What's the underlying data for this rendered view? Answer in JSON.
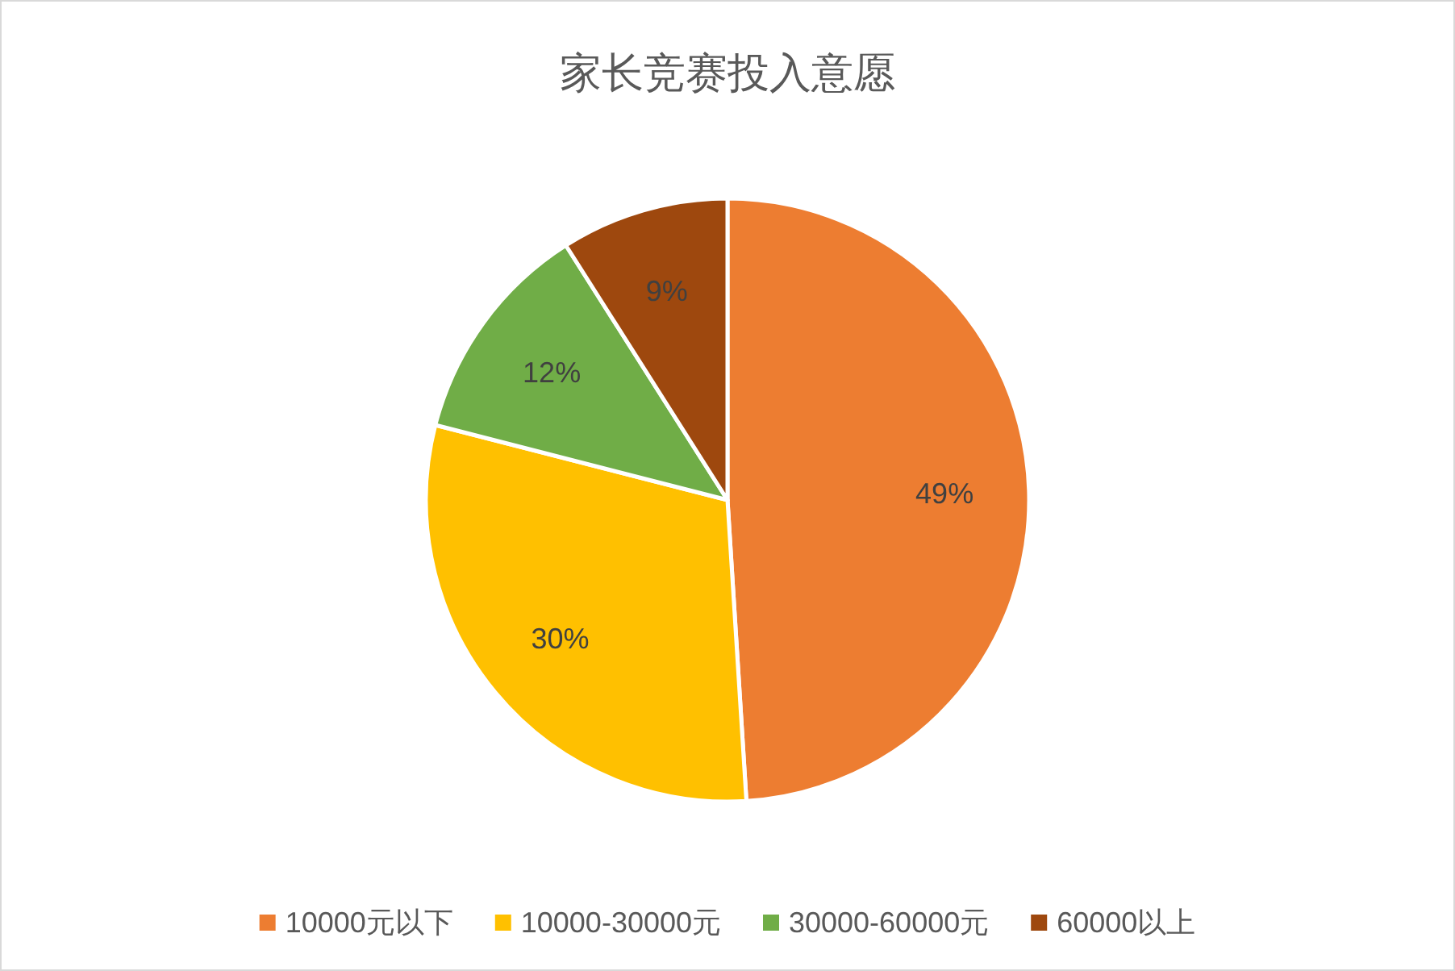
{
  "chart_data": {
    "type": "pie",
    "title": "家长竞赛投入意愿",
    "categories": [
      "10000元以下",
      "10000-30000元",
      "30000-60000元",
      "60000以上"
    ],
    "values": [
      49,
      30,
      12,
      9
    ],
    "colors": [
      "#ed7d31",
      "#ffc000",
      "#70ad47",
      "#9e480e"
    ],
    "value_labels": [
      "49%",
      "30%",
      "12%",
      "9%"
    ],
    "legend": "bottom"
  }
}
